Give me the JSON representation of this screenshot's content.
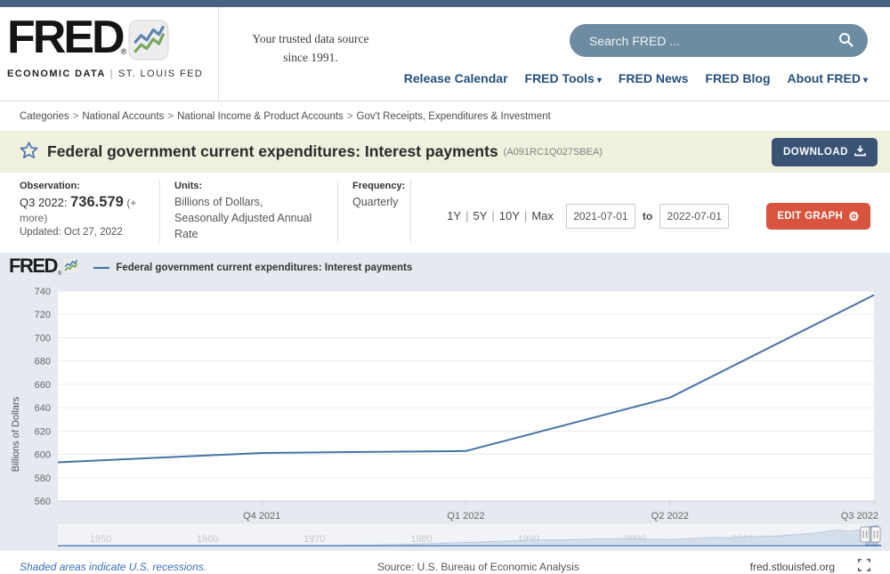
{
  "colors": {
    "top_strip": "#47637f",
    "nav_link": "#254f7c",
    "search_bg": "#6d8ca1",
    "title_bar_bg": "#eff0dd",
    "download_bg": "#3a5375",
    "edit_graph_bg": "#d9543e",
    "chart_bg": "#e5eaf1",
    "line": "#4572a7",
    "minimap_fill": "#a9bed8",
    "link_blue": "#3b6fb5",
    "star": "#4a74a8"
  },
  "header": {
    "logo": {
      "title": "FRED",
      "registered": "®",
      "subtitle_left": "ECONOMIC DATA",
      "subtitle_divider": "|",
      "subtitle_right": "ST. LOUIS FED"
    },
    "tagline_line1": "Your trusted data source",
    "tagline_line2": "since 1991.",
    "search": {
      "placeholder": "Search FRED ..."
    },
    "nav": [
      {
        "label": "Release Calendar",
        "caret": false
      },
      {
        "label": "FRED Tools",
        "caret": true
      },
      {
        "label": "FRED News",
        "caret": false
      },
      {
        "label": "FRED Blog",
        "caret": false
      },
      {
        "label": "About FRED",
        "caret": true
      }
    ]
  },
  "breadcrumb": {
    "items": [
      "Categories",
      "National Accounts",
      "National Income & Product Accounts",
      "Gov't Receipts, Expenditures & Investment"
    ],
    "separator": " > "
  },
  "series_header": {
    "title": "Federal government current expenditures: Interest payments",
    "series_id": "(A091RC1Q027SBEA)",
    "download_label": "DOWNLOAD"
  },
  "info_bar": {
    "observation_label": "Observation:",
    "observation_period": "Q3 2022:",
    "observation_value": "736.579",
    "more_label": "(+ more)",
    "updated": "Updated: Oct 27, 2022",
    "units_label": "Units:",
    "units_line1": "Billions of Dollars,",
    "units_line2": "Seasonally Adjusted Annual Rate",
    "frequency_label": "Frequency:",
    "frequency_value": "Quarterly",
    "range_links": [
      "1Y",
      "5Y",
      "10Y",
      "Max"
    ],
    "date_from": "2021-07-01",
    "to_label": "to",
    "date_to": "2022-07-01",
    "edit_graph_label": "EDIT GRAPH"
  },
  "chart": {
    "watermark": "FRED",
    "watermark_registered": "®",
    "legend_label": "Federal government current expenditures: Interest payments"
  },
  "chart_data": {
    "main": {
      "type": "line",
      "title": "Federal government current expenditures: Interest payments",
      "ylabel": "Billions of Dollars",
      "ylim": [
        560,
        740
      ],
      "ytick_step": 20,
      "grid": true,
      "legend_position": "top-left",
      "line_color": "#4572a7",
      "x_categories": [
        "2021-07-01",
        "2021-10-01",
        "2022-01-01",
        "2022-04-01",
        "2022-07-01"
      ],
      "x_tick_labels": [
        "Q4 2021",
        "Q1 2022",
        "Q2 2022",
        "Q3 2022"
      ],
      "series": [
        {
          "name": "Federal government current expenditures: Interest payments",
          "values": [
            593.2,
            601.2,
            602.9,
            648.6,
            736.579
          ]
        }
      ]
    },
    "minimap": {
      "type": "area",
      "xlim": [
        1946,
        2023
      ],
      "ymax": 760,
      "fill_color": "#a9bed8",
      "edge_color": "#7e9cc4",
      "baseline_color": "#4f7cb5",
      "x_tick_labels": [
        "1950",
        "1960",
        "1970",
        "1980",
        "1990",
        "2000",
        "2010",
        "2020"
      ],
      "x_years": [
        1947,
        1952,
        1957,
        1962,
        1967,
        1972,
        1977,
        1980,
        1983,
        1986,
        1989,
        1991,
        1993,
        1996,
        1999,
        2001,
        2003,
        2005,
        2007,
        2009,
        2011,
        2013,
        2015,
        2017,
        2019,
        2020,
        2021,
        2022,
        2022.75
      ],
      "values": [
        4,
        5,
        7,
        9,
        12,
        18,
        32,
        60,
        100,
        140,
        180,
        205,
        205,
        240,
        255,
        240,
        220,
        250,
        300,
        290,
        330,
        350,
        400,
        470,
        575,
        530,
        580,
        700,
        737
      ],
      "selected_years": [
        2021.5,
        2022.5
      ]
    }
  },
  "footer": {
    "recessions_note": "Shaded areas indicate U.S. recessions.",
    "source": "Source: U.S. Bureau of Economic Analysis",
    "site": "fred.stlouisfed.org"
  }
}
